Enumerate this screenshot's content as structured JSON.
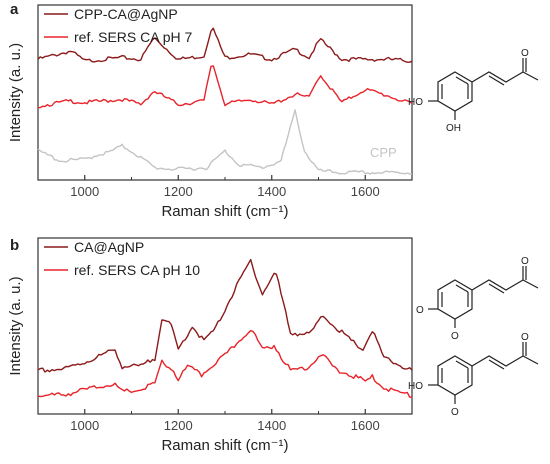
{
  "colors": {
    "dark_red": "#8b1a1a",
    "red": "#e8232a",
    "gray": "#c4c4c4",
    "axis": "#333333"
  },
  "chart_data": [
    {
      "type": "line",
      "panel": "a",
      "xlabel": "Raman shift (cm⁻¹)",
      "ylabel": "Intensity (a. u.)",
      "xlim": [
        900,
        1700
      ],
      "x_ticks": [
        1000,
        1200,
        1400,
        1600
      ],
      "grid": false,
      "legend_position": "top-left",
      "series": [
        {
          "name": "CPP-CA@AgNP",
          "color": "#8b1a1a",
          "x": [
            900,
            970,
            1000,
            1080,
            1120,
            1148,
            1200,
            1255,
            1272,
            1300,
            1355,
            1400,
            1450,
            1480,
            1503,
            1550,
            1600,
            1650,
            1700
          ],
          "y": [
            0.73,
            0.78,
            0.72,
            0.74,
            0.73,
            0.86,
            0.73,
            0.75,
            0.93,
            0.74,
            0.76,
            0.73,
            0.79,
            0.74,
            0.85,
            0.73,
            0.73,
            0.73,
            0.72
          ]
        },
        {
          "name": "ref. SERS CA pH 7",
          "color": "#e8232a",
          "x": [
            900,
            970,
            1000,
            1080,
            1120,
            1148,
            1200,
            1255,
            1272,
            1300,
            1355,
            1400,
            1450,
            1480,
            1503,
            1550,
            1600,
            1650,
            1700
          ],
          "y": [
            0.45,
            0.48,
            0.47,
            0.49,
            0.46,
            0.54,
            0.46,
            0.48,
            0.72,
            0.46,
            0.49,
            0.46,
            0.52,
            0.5,
            0.64,
            0.47,
            0.55,
            0.51,
            0.46
          ]
        },
        {
          "name": "CPP",
          "color": "#c4c4c4",
          "x": [
            900,
            950,
            1000,
            1030,
            1050,
            1080,
            1100,
            1150,
            1200,
            1260,
            1300,
            1330,
            1380,
            1420,
            1450,
            1470,
            1500,
            1550,
            1600,
            1700
          ],
          "y": [
            0.18,
            0.12,
            0.13,
            0.16,
            0.17,
            0.21,
            0.18,
            0.08,
            0.07,
            0.08,
            0.18,
            0.1,
            0.08,
            0.12,
            0.42,
            0.18,
            0.06,
            0.05,
            0.05,
            0.05
          ]
        }
      ],
      "annotations": [
        {
          "text": "CPP"
        }
      ],
      "structures": [
        {
          "labels": [
            "O",
            "HO",
            "OH"
          ]
        }
      ]
    },
    {
      "type": "line",
      "panel": "b",
      "xlabel": "Raman shift (cm⁻¹)",
      "ylabel": "Intensity (a. u.)",
      "xlim": [
        900,
        1700
      ],
      "x_ticks": [
        1000,
        1200,
        1400,
        1600
      ],
      "grid": false,
      "legend_position": "top-left",
      "series": [
        {
          "name": "CA@AgNP",
          "color": "#8b1a1a",
          "x": [
            900,
            960,
            1000,
            1065,
            1080,
            1120,
            1150,
            1165,
            1185,
            1200,
            1230,
            1255,
            1280,
            1300,
            1330,
            1355,
            1380,
            1408,
            1440,
            1480,
            1510,
            1540,
            1570,
            1595,
            1615,
            1640,
            1700
          ],
          "y": [
            0.36,
            0.37,
            0.4,
            0.46,
            0.38,
            0.38,
            0.42,
            0.61,
            0.57,
            0.46,
            0.57,
            0.5,
            0.56,
            0.65,
            0.78,
            0.88,
            0.72,
            0.83,
            0.54,
            0.53,
            0.62,
            0.56,
            0.5,
            0.46,
            0.55,
            0.42,
            0.36
          ]
        },
        {
          "name": "ref. SERS CA pH 10",
          "color": "#e8232a",
          "x": [
            900,
            960,
            1000,
            1060,
            1080,
            1120,
            1150,
            1165,
            1190,
            1200,
            1220,
            1250,
            1280,
            1300,
            1330,
            1355,
            1380,
            1405,
            1440,
            1480,
            1505,
            1540,
            1570,
            1600,
            1615,
            1640,
            1700
          ],
          "y": [
            0.24,
            0.25,
            0.27,
            0.3,
            0.26,
            0.27,
            0.3,
            0.4,
            0.36,
            0.32,
            0.38,
            0.34,
            0.4,
            0.43,
            0.5,
            0.56,
            0.46,
            0.48,
            0.36,
            0.38,
            0.44,
            0.36,
            0.34,
            0.31,
            0.33,
            0.28,
            0.24
          ]
        }
      ],
      "structures": [
        {
          "labels": [
            "O",
            "O",
            "O"
          ]
        },
        {
          "labels": [
            "O",
            "HO",
            "O"
          ]
        }
      ]
    }
  ]
}
